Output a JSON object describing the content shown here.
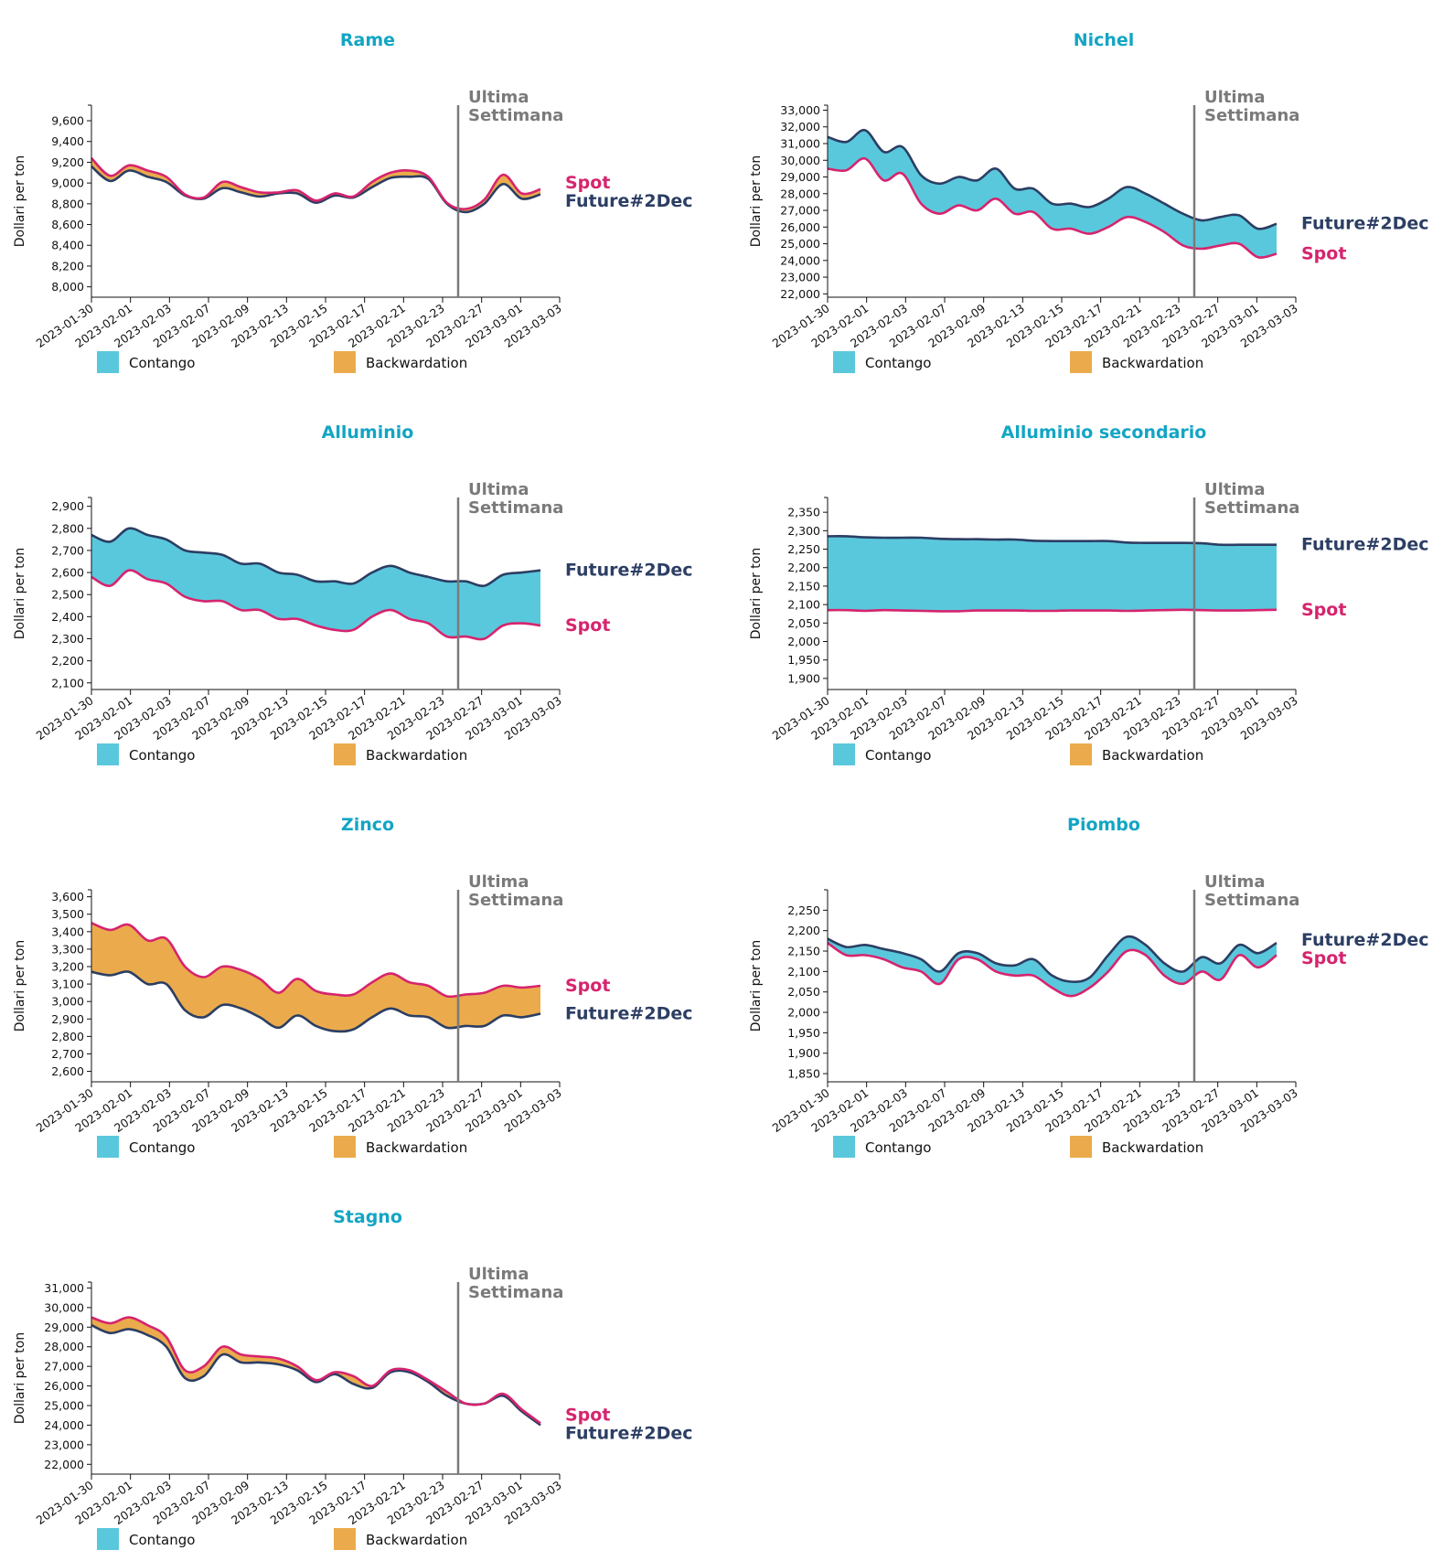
{
  "colors": {
    "title": "#13a5c4",
    "spot": "#d6246e",
    "future": "#2c3e63",
    "contango": "#5ac8dc",
    "backwardation": "#ebab4c",
    "marker": "#7a7a7a",
    "axis": "#111111"
  },
  "legend": {
    "contango": "Contango",
    "backwardation": "Backwardation"
  },
  "marker_label": [
    "Ultima",
    "Settimana"
  ],
  "ylabel": "Dollari per ton",
  "series_names": {
    "spot": "Spot",
    "future": "Future#2Dec"
  },
  "x_ticks": [
    "2023-01-30",
    "2023-02-01",
    "2023-02-03",
    "2023-02-07",
    "2023-02-09",
    "2023-02-13",
    "2023-02-15",
    "2023-02-17",
    "2023-02-21",
    "2023-02-23",
    "2023-02-27",
    "2023-03-01",
    "2023-03-03"
  ],
  "chart_data": [
    {
      "type": "area",
      "title": "Rame",
      "ylim": [
        7900,
        9750
      ],
      "yticks": [
        8000,
        8200,
        8400,
        8600,
        8800,
        9000,
        9200,
        9400,
        9600
      ],
      "marker_after_index": 16,
      "x": [
        "2023-01-30",
        "2023-01-31",
        "2023-02-01",
        "2023-02-02",
        "2023-02-03",
        "2023-02-06",
        "2023-02-07",
        "2023-02-08",
        "2023-02-09",
        "2023-02-10",
        "2023-02-13",
        "2023-02-14",
        "2023-02-15",
        "2023-02-16",
        "2023-02-17",
        "2023-02-20",
        "2023-02-21",
        "2023-02-22",
        "2023-02-23",
        "2023-02-24",
        "2023-02-27",
        "2023-02-28",
        "2023-03-01",
        "2023-03-02",
        "2023-03-03"
      ],
      "series": [
        {
          "name": "Spot",
          "values": [
            9240,
            9070,
            9170,
            9120,
            9060,
            8890,
            8860,
            9010,
            8960,
            8910,
            8910,
            8930,
            8830,
            8900,
            8870,
            9010,
            9100,
            9120,
            9060,
            8810,
            8750,
            8840,
            9080,
            8900,
            8940
          ]
        },
        {
          "name": "Future#2Dec",
          "values": [
            9160,
            9020,
            9120,
            9060,
            9010,
            8880,
            8850,
            8950,
            8910,
            8870,
            8900,
            8900,
            8810,
            8880,
            8860,
            8960,
            9050,
            9060,
            9040,
            8800,
            8720,
            8800,
            8990,
            8850,
            8890
          ]
        }
      ]
    },
    {
      "type": "area",
      "title": "Nichel",
      "ylim": [
        21800,
        33300
      ],
      "yticks": [
        22000,
        23000,
        24000,
        25000,
        26000,
        27000,
        28000,
        29000,
        30000,
        31000,
        32000,
        33000
      ],
      "marker_after_index": 16,
      "x": [
        "2023-01-30",
        "2023-01-31",
        "2023-02-01",
        "2023-02-02",
        "2023-02-03",
        "2023-02-06",
        "2023-02-07",
        "2023-02-08",
        "2023-02-09",
        "2023-02-10",
        "2023-02-13",
        "2023-02-14",
        "2023-02-15",
        "2023-02-16",
        "2023-02-17",
        "2023-02-20",
        "2023-02-21",
        "2023-02-22",
        "2023-02-23",
        "2023-02-24",
        "2023-02-27",
        "2023-02-28",
        "2023-03-01",
        "2023-03-02",
        "2023-03-03"
      ],
      "series": [
        {
          "name": "Spot",
          "values": [
            29500,
            29400,
            30100,
            28800,
            29200,
            27400,
            26800,
            27300,
            27000,
            27700,
            26800,
            26900,
            25900,
            25900,
            25600,
            26000,
            26600,
            26300,
            25700,
            24900,
            24700,
            24900,
            25000,
            24200,
            24400
          ]
        },
        {
          "name": "Future#2Dec",
          "values": [
            31400,
            31100,
            31800,
            30500,
            30800,
            29100,
            28600,
            29000,
            28800,
            29500,
            28300,
            28300,
            27400,
            27400,
            27200,
            27700,
            28400,
            28000,
            27400,
            26800,
            26400,
            26600,
            26700,
            25900,
            26200
          ]
        }
      ]
    },
    {
      "type": "area",
      "title": "Alluminio",
      "ylim": [
        2070,
        2940
      ],
      "yticks": [
        2100,
        2200,
        2300,
        2400,
        2500,
        2600,
        2700,
        2800,
        2900
      ],
      "marker_after_index": 16,
      "x": [
        "2023-01-30",
        "2023-01-31",
        "2023-02-01",
        "2023-02-02",
        "2023-02-03",
        "2023-02-06",
        "2023-02-07",
        "2023-02-08",
        "2023-02-09",
        "2023-02-10",
        "2023-02-13",
        "2023-02-14",
        "2023-02-15",
        "2023-02-16",
        "2023-02-17",
        "2023-02-20",
        "2023-02-21",
        "2023-02-22",
        "2023-02-23",
        "2023-02-24",
        "2023-02-27",
        "2023-02-28",
        "2023-03-01",
        "2023-03-02",
        "2023-03-03"
      ],
      "series": [
        {
          "name": "Spot",
          "values": [
            2580,
            2540,
            2610,
            2570,
            2550,
            2490,
            2470,
            2470,
            2430,
            2430,
            2390,
            2390,
            2360,
            2340,
            2340,
            2400,
            2430,
            2390,
            2370,
            2310,
            2310,
            2300,
            2360,
            2370,
            2360
          ]
        },
        {
          "name": "Future#2Dec",
          "values": [
            2770,
            2740,
            2800,
            2770,
            2750,
            2700,
            2690,
            2680,
            2640,
            2640,
            2600,
            2590,
            2560,
            2560,
            2550,
            2600,
            2630,
            2600,
            2580,
            2560,
            2560,
            2540,
            2590,
            2600,
            2610
          ]
        }
      ]
    },
    {
      "type": "area",
      "title": "Alluminio secondario",
      "ylim": [
        1870,
        2390
      ],
      "yticks": [
        1900,
        1950,
        2000,
        2050,
        2100,
        2150,
        2200,
        2250,
        2300,
        2350
      ],
      "marker_after_index": 16,
      "x": [
        "2023-01-30",
        "2023-01-31",
        "2023-02-01",
        "2023-02-02",
        "2023-02-03",
        "2023-02-06",
        "2023-02-07",
        "2023-02-08",
        "2023-02-09",
        "2023-02-10",
        "2023-02-13",
        "2023-02-14",
        "2023-02-15",
        "2023-02-16",
        "2023-02-17",
        "2023-02-20",
        "2023-02-21",
        "2023-02-22",
        "2023-02-23",
        "2023-02-24",
        "2023-02-27",
        "2023-02-28",
        "2023-03-01",
        "2023-03-02",
        "2023-03-03"
      ],
      "series": [
        {
          "name": "Spot",
          "values": [
            2085,
            2085,
            2083,
            2085,
            2084,
            2083,
            2082,
            2082,
            2084,
            2084,
            2084,
            2083,
            2083,
            2084,
            2084,
            2084,
            2083,
            2084,
            2085,
            2086,
            2085,
            2084,
            2084,
            2085,
            2086
          ]
        },
        {
          "name": "Future#2Dec",
          "values": [
            2285,
            2285,
            2282,
            2281,
            2281,
            2281,
            2278,
            2277,
            2277,
            2276,
            2276,
            2273,
            2272,
            2272,
            2272,
            2272,
            2268,
            2267,
            2267,
            2267,
            2266,
            2262,
            2262,
            2262,
            2262
          ]
        }
      ]
    },
    {
      "type": "area",
      "title": "Zinco",
      "ylim": [
        2540,
        3640
      ],
      "yticks": [
        2600,
        2700,
        2800,
        2900,
        3000,
        3100,
        3200,
        3300,
        3400,
        3500,
        3600
      ],
      "marker_after_index": 16,
      "x": [
        "2023-01-30",
        "2023-01-31",
        "2023-02-01",
        "2023-02-02",
        "2023-02-03",
        "2023-02-06",
        "2023-02-07",
        "2023-02-08",
        "2023-02-09",
        "2023-02-10",
        "2023-02-13",
        "2023-02-14",
        "2023-02-15",
        "2023-02-16",
        "2023-02-17",
        "2023-02-20",
        "2023-02-21",
        "2023-02-22",
        "2023-02-23",
        "2023-02-24",
        "2023-02-27",
        "2023-02-28",
        "2023-03-01",
        "2023-03-02",
        "2023-03-03"
      ],
      "series": [
        {
          "name": "Spot",
          "values": [
            3450,
            3410,
            3440,
            3350,
            3360,
            3200,
            3140,
            3200,
            3180,
            3130,
            3050,
            3130,
            3060,
            3040,
            3040,
            3110,
            3160,
            3110,
            3090,
            3030,
            3040,
            3050,
            3090,
            3080,
            3090
          ]
        },
        {
          "name": "Future#2Dec",
          "values": [
            3170,
            3150,
            3170,
            3100,
            3100,
            2950,
            2910,
            2980,
            2960,
            2910,
            2850,
            2920,
            2860,
            2830,
            2840,
            2910,
            2960,
            2920,
            2910,
            2850,
            2860,
            2860,
            2920,
            2910,
            2930
          ]
        }
      ]
    },
    {
      "type": "area",
      "title": "Piombo",
      "ylim": [
        1830,
        2300
      ],
      "yticks": [
        1850,
        1900,
        1950,
        2000,
        2050,
        2100,
        2150,
        2200,
        2250
      ],
      "marker_after_index": 16,
      "x": [
        "2023-01-30",
        "2023-01-31",
        "2023-02-01",
        "2023-02-02",
        "2023-02-03",
        "2023-02-06",
        "2023-02-07",
        "2023-02-08",
        "2023-02-09",
        "2023-02-10",
        "2023-02-13",
        "2023-02-14",
        "2023-02-15",
        "2023-02-16",
        "2023-02-17",
        "2023-02-20",
        "2023-02-21",
        "2023-02-22",
        "2023-02-23",
        "2023-02-24",
        "2023-02-27",
        "2023-02-28",
        "2023-03-01",
        "2023-03-02",
        "2023-03-03"
      ],
      "series": [
        {
          "name": "Spot",
          "values": [
            2170,
            2140,
            2140,
            2130,
            2110,
            2100,
            2070,
            2130,
            2130,
            2100,
            2090,
            2090,
            2060,
            2040,
            2060,
            2100,
            2150,
            2140,
            2090,
            2070,
            2100,
            2080,
            2140,
            2110,
            2140
          ]
        },
        {
          "name": "Future#2Dec",
          "values": [
            2180,
            2160,
            2165,
            2155,
            2145,
            2130,
            2100,
            2145,
            2145,
            2120,
            2115,
            2130,
            2090,
            2075,
            2085,
            2140,
            2185,
            2165,
            2120,
            2100,
            2135,
            2120,
            2165,
            2145,
            2170
          ]
        }
      ]
    },
    {
      "type": "area",
      "title": "Stagno",
      "ylim": [
        21500,
        31300
      ],
      "yticks": [
        22000,
        23000,
        24000,
        25000,
        26000,
        27000,
        28000,
        29000,
        30000,
        31000
      ],
      "marker_after_index": 16,
      "x": [
        "2023-01-30",
        "2023-01-31",
        "2023-02-01",
        "2023-02-02",
        "2023-02-03",
        "2023-02-06",
        "2023-02-07",
        "2023-02-08",
        "2023-02-09",
        "2023-02-10",
        "2023-02-13",
        "2023-02-14",
        "2023-02-15",
        "2023-02-16",
        "2023-02-17",
        "2023-02-20",
        "2023-02-21",
        "2023-02-22",
        "2023-02-23",
        "2023-02-24",
        "2023-02-27",
        "2023-02-28",
        "2023-03-01",
        "2023-03-02",
        "2023-03-03"
      ],
      "series": [
        {
          "name": "Spot",
          "values": [
            29500,
            29200,
            29500,
            29100,
            28500,
            26800,
            27000,
            28000,
            27600,
            27500,
            27400,
            27000,
            26300,
            26700,
            26500,
            26000,
            26800,
            26800,
            26300,
            25700,
            25100,
            25100,
            25600,
            24800,
            24100
          ]
        },
        {
          "name": "Future#2Dec",
          "values": [
            29100,
            28700,
            28900,
            28600,
            28000,
            26400,
            26500,
            27600,
            27200,
            27200,
            27100,
            26800,
            26200,
            26600,
            26100,
            25900,
            26700,
            26700,
            26200,
            25500,
            25100,
            25100,
            25500,
            24700,
            24000
          ]
        }
      ]
    }
  ]
}
